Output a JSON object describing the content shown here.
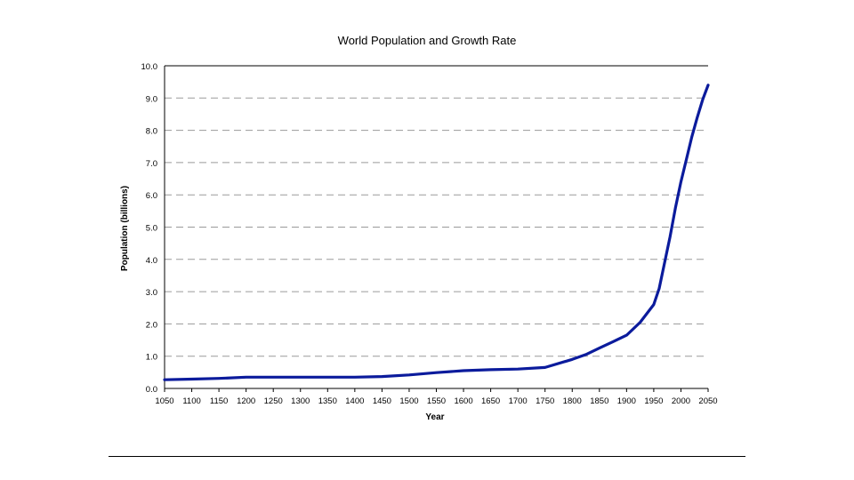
{
  "chart_data": {
    "type": "line",
    "title": "World Population and Growth Rate",
    "xlabel": "Year",
    "ylabel": "Population (billions)",
    "xlim": [
      1050,
      2050
    ],
    "ylim": [
      0,
      10
    ],
    "x_ticks": [
      1050,
      1100,
      1150,
      1200,
      1250,
      1300,
      1350,
      1400,
      1450,
      1500,
      1550,
      1600,
      1650,
      1700,
      1750,
      1800,
      1850,
      1900,
      1950,
      2000,
      2050
    ],
    "y_ticks": [
      "0.0",
      "1.0",
      "2.0",
      "3.0",
      "4.0",
      "5.0",
      "6.0",
      "7.0",
      "8.0",
      "9.0",
      "10.0"
    ],
    "grid": true,
    "legend": "none",
    "series_color": "#0b1b9c",
    "series": [
      {
        "x": [
          1050,
          1100,
          1150,
          1200,
          1250,
          1300,
          1350,
          1400,
          1450,
          1500,
          1550,
          1600,
          1650,
          1700,
          1750,
          1800,
          1825,
          1850,
          1875,
          1900,
          1925,
          1950,
          1960,
          1970,
          1980,
          1990,
          2000,
          2010,
          2020,
          2030,
          2040,
          2050
        ],
        "y": [
          0.27,
          0.29,
          0.31,
          0.35,
          0.35,
          0.35,
          0.35,
          0.35,
          0.37,
          0.42,
          0.49,
          0.55,
          0.58,
          0.6,
          0.65,
          0.9,
          1.05,
          1.25,
          1.45,
          1.65,
          2.05,
          2.6,
          3.1,
          3.9,
          4.7,
          5.6,
          6.4,
          7.1,
          7.8,
          8.4,
          8.95,
          9.4
        ]
      }
    ]
  },
  "footer": {
    "rule": true
  }
}
